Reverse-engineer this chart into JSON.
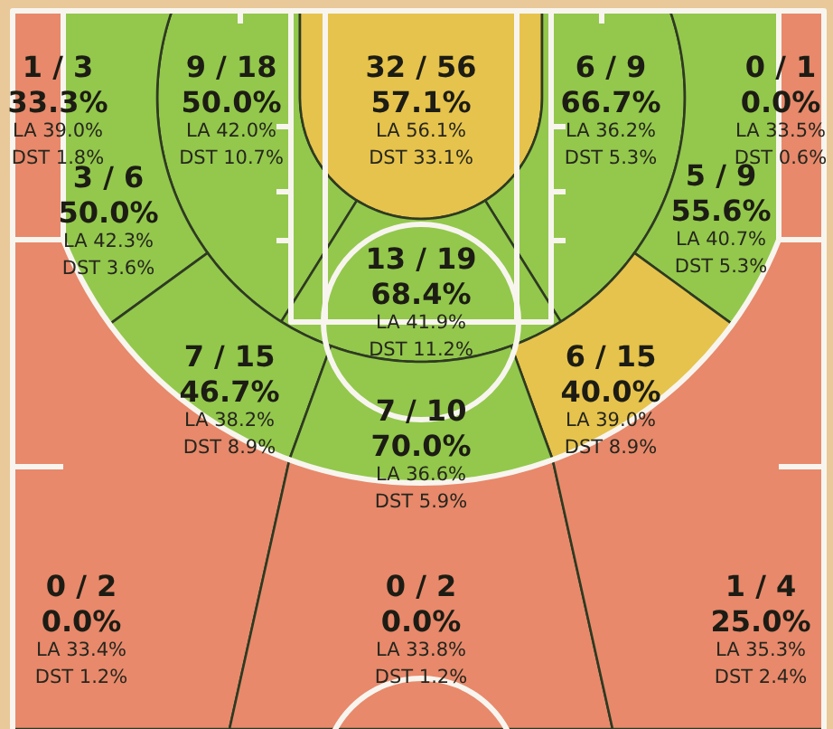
{
  "chart_data": {
    "type": "other",
    "values": [
      33.3,
      50.0,
      57.1,
      66.7,
      0.0,
      50.0,
      55.6,
      68.4,
      46.7,
      40.0,
      70.0,
      0.0,
      0.0,
      25.0
    ],
    "value_labels": [
      "33.3%",
      "50.0%",
      "57.1%",
      "66.7%",
      "0.0%",
      "50.0%",
      "55.6%",
      "68.4%",
      "46.7%",
      "40.0%",
      "70.0%",
      "0.0%",
      "0.0%",
      "25.0%"
    ],
    "colors": [
      "#e8896b",
      "#93c84c",
      "#e6c34c",
      "#93c84c",
      "#e8896b",
      "#93c84c",
      "#93c84c",
      "#93c84c",
      "#93c84c",
      "#e6c34c",
      "#93c84c",
      "#e8896b",
      "#e8896b",
      "#e8896b"
    ],
    "annotations": [
      "1 / 3",
      "LA 39.0%",
      "DST 1.8%",
      "9 / 18",
      "LA 42.0%",
      "DST 10.7%",
      "32 / 56",
      "LA 56.1%",
      "DST 33.1%",
      "6 / 9",
      "LA 36.2%",
      "DST 5.3%",
      "0 / 1",
      "LA 33.5%",
      "DST 0.6%",
      "3 / 6",
      "LA 42.3%",
      "DST 3.6%",
      "5 / 9",
      "LA 40.7%",
      "DST 5.3%",
      "13 / 19",
      "LA 41.9%",
      "DST 11.2%",
      "7 / 15",
      "LA 38.2%",
      "DST 8.9%",
      "6 / 15",
      "LA 39.0%",
      "DST 8.9%",
      "7 / 10",
      "LA 36.6%",
      "DST 5.9%",
      "0 / 2",
      "LA 33.4%",
      "DST 1.2%",
      "0 / 2",
      "LA 33.8%",
      "DST 1.2%",
      "1 / 4",
      "LA 35.3%",
      "DST 2.4%"
    ]
  }
}
